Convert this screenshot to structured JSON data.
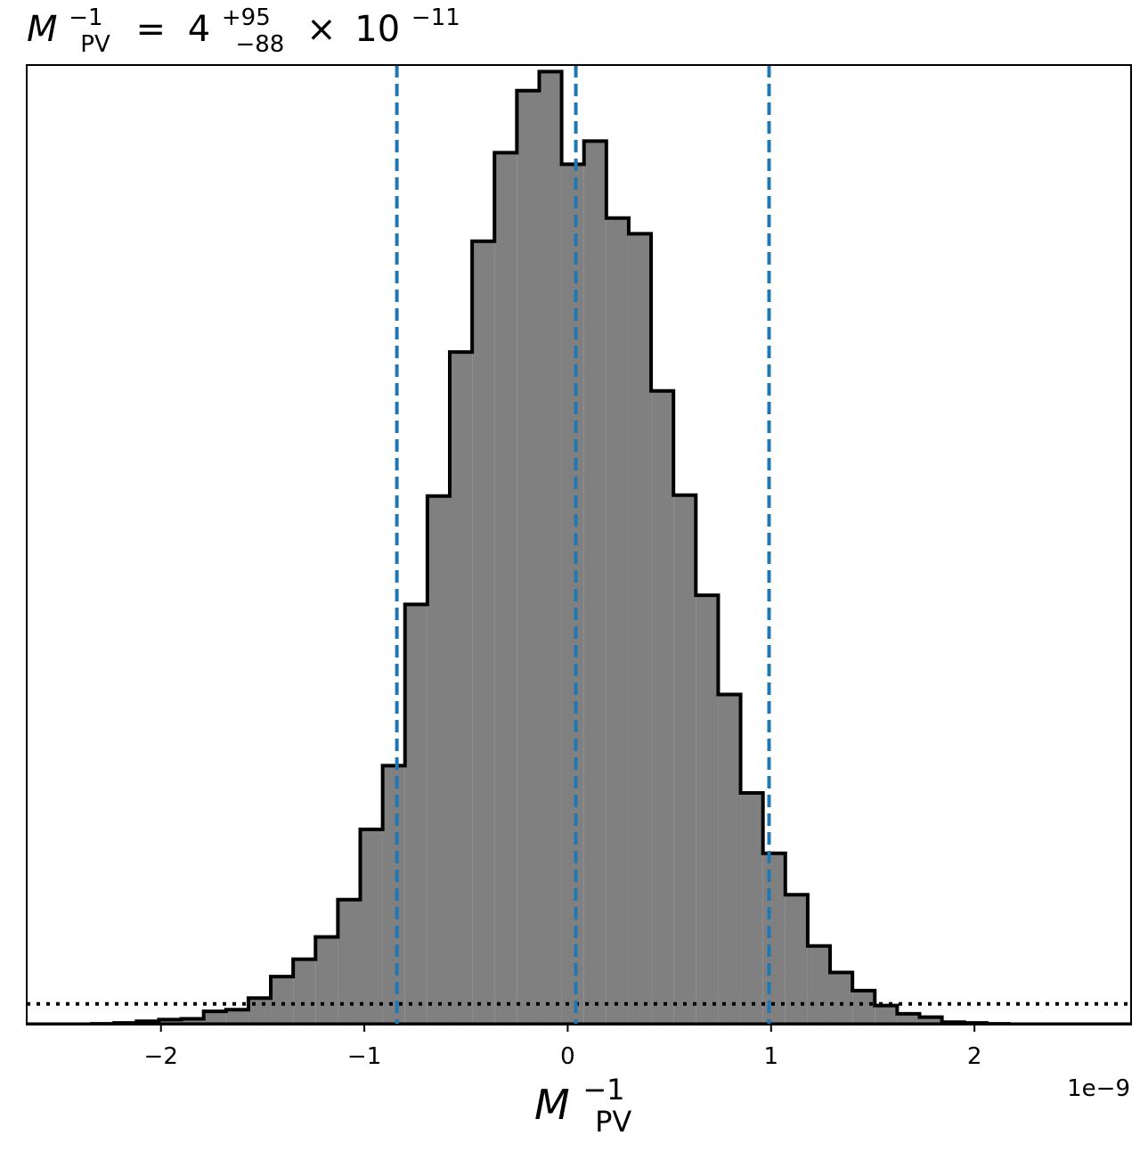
{
  "chart_data": {
    "type": "histogram",
    "title": {
      "var_main": "M",
      "var_sup": "−1",
      "var_sub": "PV",
      "equals": "=",
      "value": "4",
      "err_plus": "+95",
      "err_minus": "−88",
      "times": "×",
      "base": "10",
      "exponent": "−11"
    },
    "xlabel": {
      "var_main": "M",
      "var_sup": "−1",
      "var_sub": "PV"
    },
    "offset_label": "1e−9",
    "xlim": [
      -2.66,
      2.77
    ],
    "x_scale_factor": 1e-09,
    "xticks": [
      {
        "value": -2,
        "label": "−2"
      },
      {
        "value": -1,
        "label": "−1"
      },
      {
        "value": 0,
        "label": "0"
      },
      {
        "value": 1,
        "label": "1"
      },
      {
        "value": 2,
        "label": "2"
      }
    ],
    "y_ticks_shown": false,
    "bin_edges": [
      -2.34,
      -2.23,
      -2.12,
      -2.01,
      -1.9,
      -1.79,
      -1.68,
      -1.57,
      -1.46,
      -1.35,
      -1.24,
      -1.13,
      -1.02,
      -0.91,
      -0.8,
      -0.69,
      -0.58,
      -0.47,
      -0.36,
      -0.25,
      -0.14,
      -0.03,
      0.08,
      0.19,
      0.3,
      0.41,
      0.52,
      0.63,
      0.74,
      0.85,
      0.96,
      1.07,
      1.18,
      1.29,
      1.4,
      1.51,
      1.62,
      1.73,
      1.84,
      1.95,
      2.06,
      2.17,
      2.28
    ],
    "counts": [
      1,
      2,
      4,
      6,
      7,
      16,
      18,
      32,
      58,
      79,
      106,
      151,
      236,
      313,
      508,
      639,
      813,
      947,
      1054,
      1129,
      1152,
      1040,
      1068,
      975,
      956,
      766,
      640,
      519,
      399,
      280,
      207,
      157,
      95,
      63,
      41,
      23,
      13,
      9,
      3,
      2,
      1,
      0
    ],
    "ylim": [
      0,
      1160
    ],
    "quantile_lines": [
      {
        "name": "lower",
        "value": -0.84
      },
      {
        "name": "median",
        "value": 0.04
      },
      {
        "name": "upper",
        "value": 0.99
      }
    ],
    "threshold_line": {
      "value": 25,
      "style": "dotted"
    },
    "colors": {
      "fill": "#808080",
      "edge": "#000000",
      "quantile": "#1f77b4",
      "threshold": "#000000"
    }
  }
}
